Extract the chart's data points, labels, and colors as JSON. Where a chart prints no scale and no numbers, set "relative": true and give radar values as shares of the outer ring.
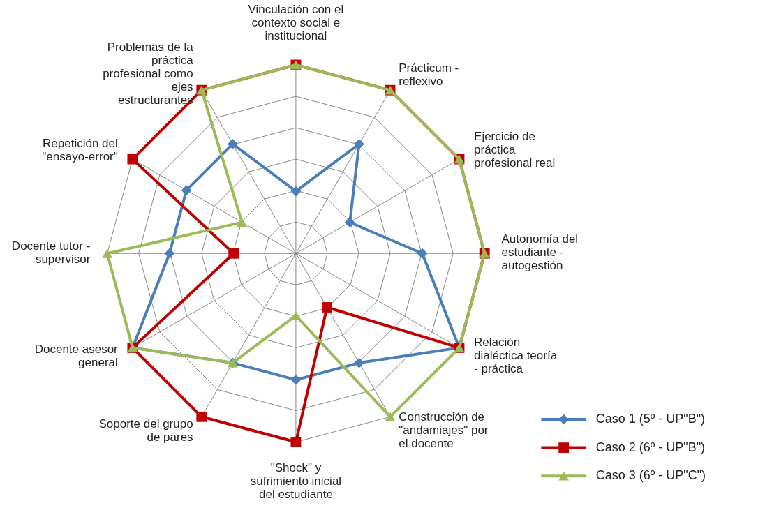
{
  "chart_data": {
    "type": "radar",
    "relative": true,
    "grid": true,
    "legend": "bottom right",
    "categories": [
      "Vinculación con el contexto social e institucional",
      "Prácticum - reflexivo",
      "Ejercicio de práctica profesional real",
      "Autonomía del estudiante - autogestión",
      "Relación dialéctica teoría - práctica",
      "Construcción de \"andamiajes\" por el docente",
      "\"Shock\" y sufrimiento inicial del estudiante",
      "Soporte del grupo de pares",
      "Docente asesor general",
      "Docente tutor - supervisor",
      "Repetición del \"ensayo-error\"",
      "Problemas de la práctica profesional como ejes estructurantes"
    ],
    "series": [
      {
        "name": "Caso 1 (5º - UP\"B\")",
        "color": "#4a7ebb",
        "marker": "diamond",
        "values": [
          0.33,
          0.67,
          0.33,
          0.67,
          1,
          0.67,
          0.67,
          0.67,
          1,
          0.67,
          0.67,
          0.67
        ]
      },
      {
        "name": "Caso 2 (6º - UP\"B\")",
        "color": "#c00000",
        "marker": "square",
        "values": [
          1,
          1,
          1,
          1,
          1,
          0.33,
          1,
          1,
          1,
          0.33,
          1,
          1
        ]
      },
      {
        "name": "Caso 3 (6º - UP\"C\")",
        "color": "#9bbb59",
        "marker": "triangle",
        "values": [
          1,
          1,
          1,
          1,
          1,
          1,
          0.33,
          0.67,
          1,
          1,
          0.33,
          1
        ]
      }
    ]
  }
}
